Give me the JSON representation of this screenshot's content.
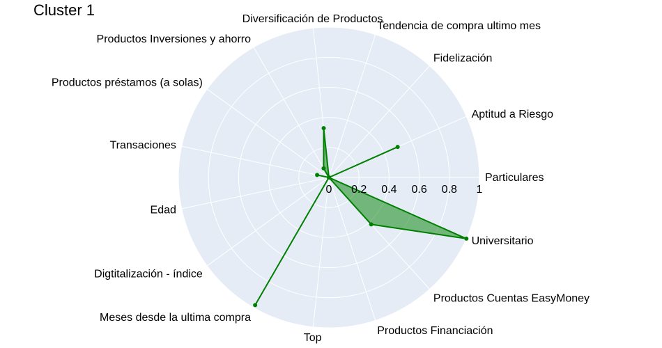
{
  "chart_data": {
    "type": "radar",
    "title": "Cluster 1",
    "categories": [
      "Particulares",
      "Aptitud a Riesgo",
      "Fidelización",
      "Tendencia de compra ultimo mes",
      "Diversificación de Productos",
      "Productos Inversiones y ahorro",
      "Productos préstamos (a solas)",
      "Transaciones",
      "Edad",
      "Digtitalización - índice",
      "Meses desde la ultima compra",
      "Top",
      "Productos Financiación",
      "Productos Cuentas EasyMoney",
      "Universitario"
    ],
    "values": [
      0.0,
      0.5,
      0.0,
      0.0,
      0.33,
      0.07,
      0.0,
      0.08,
      0.0,
      0.0,
      0.98,
      0.0,
      0.0,
      0.42,
      1.0
    ],
    "radial_range": [
      0,
      1
    ],
    "radial_ticks": [
      "0",
      "0.2",
      "0.4",
      "0.6",
      "0.8",
      "1"
    ],
    "colors": {
      "line": "#008000",
      "fill": "#008000",
      "plot_bg": "#e5ecf6",
      "grid": "#ffffff"
    },
    "grid": true,
    "legend": "none"
  }
}
